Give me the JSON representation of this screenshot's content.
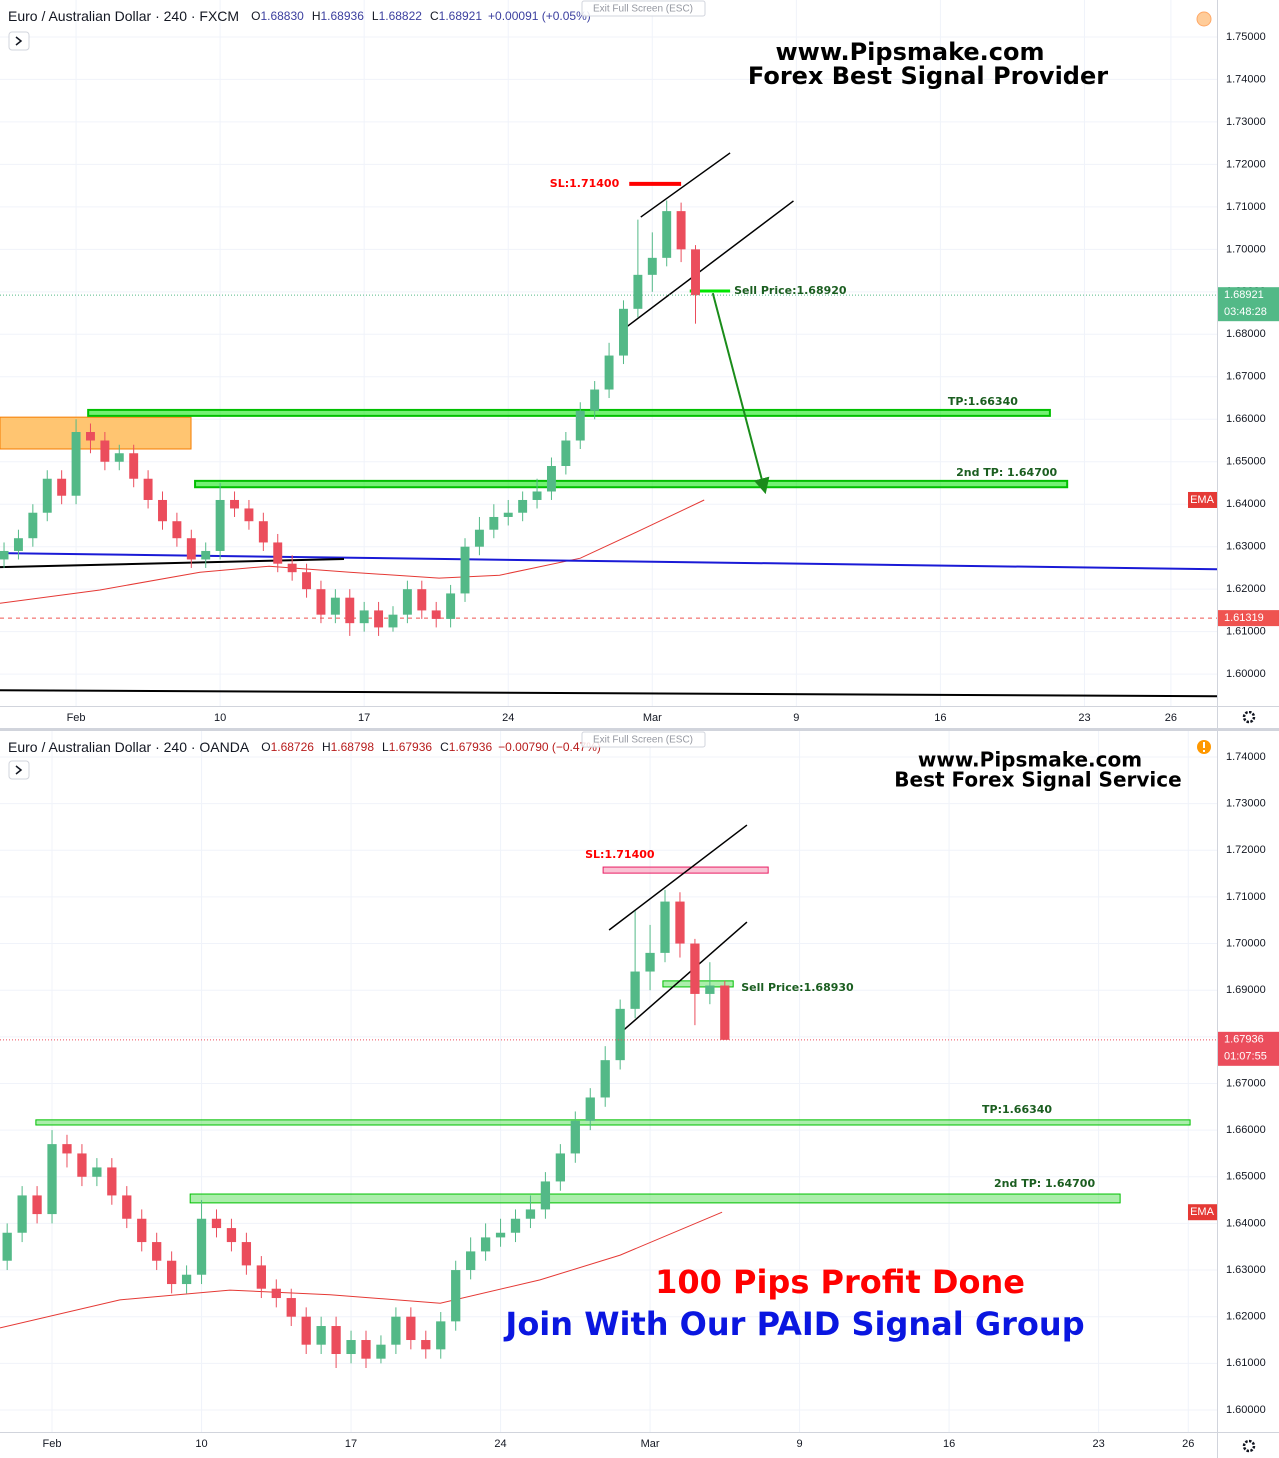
{
  "chart_data": [
    {
      "type": "candlestick",
      "title": "Euro / Australian Dollar · 240 · FXCM",
      "header_color": "#3b3f9f",
      "ohlc": [
        {
          "key": "O",
          "value": 1.6883,
          "label": "1.68830"
        },
        {
          "key": "H",
          "value": 1.68936,
          "label": "1.68936"
        },
        {
          "key": "L",
          "value": 1.68822,
          "label": "1.68822"
        },
        {
          "key": "C",
          "value": 1.68921,
          "label": "1.68921"
        }
      ],
      "change": "+0.00091 (+0.05%)",
      "exit": "Exit Full Screen (ESC)",
      "watermark": [
        "www.Pipsmake.com",
        "Forex Best Signal Provider"
      ],
      "xlim": [
        -2.64,
        39.6
      ],
      "xticks": [
        {
          "value": 0,
          "label": "Feb"
        },
        {
          "value": 5,
          "label": "10"
        },
        {
          "value": 10,
          "label": "17"
        },
        {
          "value": 15,
          "label": "24"
        },
        {
          "value": 20,
          "label": "Mar"
        },
        {
          "value": 25,
          "label": "9"
        },
        {
          "value": 30,
          "label": "16"
        },
        {
          "value": 35,
          "label": "23"
        },
        {
          "value": 38,
          "label": "26"
        }
      ],
      "ylim": [
        1.5925,
        1.7587
      ],
      "yticks": [
        {
          "value": 1.6,
          "label": "1.60000"
        },
        {
          "value": 1.61,
          "label": "1.61000"
        },
        {
          "value": 1.62,
          "label": "1.62000"
        },
        {
          "value": 1.63,
          "label": "1.63000"
        },
        {
          "value": 1.64,
          "label": "1.64000"
        },
        {
          "value": 1.65,
          "label": "1.65000"
        },
        {
          "value": 1.66,
          "label": "1.66000"
        },
        {
          "value": 1.67,
          "label": "1.67000"
        },
        {
          "value": 1.68,
          "label": "1.68000"
        },
        {
          "value": 1.69,
          "label": "1.69000"
        },
        {
          "value": 1.7,
          "label": "1.70000"
        },
        {
          "value": 1.71,
          "label": "1.71000"
        },
        {
          "value": 1.72,
          "label": "1.72000"
        },
        {
          "value": 1.73,
          "label": "1.73000"
        },
        {
          "value": 1.74,
          "label": "1.74000"
        },
        {
          "value": 1.75,
          "label": "1.75000"
        }
      ],
      "grid": true,
      "up_color": "#53b987",
      "down_color": "#eb4d5c",
      "x": [
        -2.5,
        -2,
        -1.5,
        -1,
        -0.5,
        0,
        0.5,
        1,
        1.5,
        2,
        2.5,
        3,
        3.5,
        4,
        4.5,
        5,
        5.5,
        6,
        6.5,
        7,
        7.5,
        8,
        8.5,
        9,
        9.5,
        10,
        10.5,
        11,
        11.5,
        12,
        12.5,
        13,
        13.5,
        14,
        14.5,
        15,
        15.5,
        16,
        16.5,
        17,
        17.5,
        18,
        18.5,
        19,
        19.5,
        20,
        20.5,
        21,
        21.5
      ],
      "open": [
        1.627,
        1.629,
        1.632,
        1.638,
        1.646,
        1.642,
        1.657,
        1.655,
        1.65,
        1.652,
        1.646,
        1.641,
        1.636,
        1.632,
        1.627,
        1.629,
        1.641,
        1.639,
        1.636,
        1.631,
        1.626,
        1.624,
        1.62,
        1.614,
        1.618,
        1.612,
        1.615,
        1.611,
        1.614,
        1.62,
        1.615,
        1.613,
        1.619,
        1.63,
        1.634,
        1.637,
        1.638,
        1.641,
        1.643,
        1.649,
        1.655,
        1.662,
        1.667,
        1.675,
        1.686,
        1.694,
        1.698,
        1.709,
        1.7
      ],
      "high": [
        1.631,
        1.634,
        1.64,
        1.648,
        1.648,
        1.66,
        1.659,
        1.657,
        1.654,
        1.654,
        1.648,
        1.643,
        1.638,
        1.634,
        1.631,
        1.645,
        1.643,
        1.641,
        1.638,
        1.633,
        1.628,
        1.626,
        1.622,
        1.62,
        1.62,
        1.617,
        1.617,
        1.616,
        1.622,
        1.622,
        1.617,
        1.621,
        1.632,
        1.637,
        1.64,
        1.641,
        1.643,
        1.646,
        1.651,
        1.657,
        1.664,
        1.669,
        1.678,
        1.688,
        1.707,
        1.704,
        1.7115,
        1.711,
        1.701
      ],
      "low": [
        1.625,
        1.627,
        1.63,
        1.636,
        1.64,
        1.64,
        1.652,
        1.648,
        1.648,
        1.644,
        1.639,
        1.634,
        1.63,
        1.625,
        1.625,
        1.627,
        1.637,
        1.634,
        1.629,
        1.624,
        1.622,
        1.618,
        1.612,
        1.612,
        1.609,
        1.61,
        1.609,
        1.61,
        1.612,
        1.613,
        1.611,
        1.611,
        1.617,
        1.628,
        1.632,
        1.635,
        1.636,
        1.639,
        1.641,
        1.647,
        1.653,
        1.66,
        1.665,
        1.673,
        1.684,
        1.69,
        1.696,
        1.697,
        1.6825
      ],
      "close": [
        1.629,
        1.632,
        1.638,
        1.646,
        1.642,
        1.657,
        1.655,
        1.65,
        1.652,
        1.646,
        1.641,
        1.636,
        1.632,
        1.627,
        1.629,
        1.641,
        1.639,
        1.636,
        1.631,
        1.626,
        1.624,
        1.62,
        1.614,
        1.618,
        1.612,
        1.615,
        1.611,
        1.614,
        1.62,
        1.615,
        1.613,
        1.619,
        1.63,
        1.634,
        1.637,
        1.638,
        1.641,
        1.643,
        1.649,
        1.655,
        1.662,
        1.667,
        1.675,
        1.686,
        1.694,
        1.698,
        1.709,
        1.7,
        1.68921
      ],
      "ema": {
        "name": "EMA",
        "color": "#e53935",
        "x": [
          -2.64,
          0.83,
          4.3,
          6.7,
          9.5,
          12.6,
          14.7,
          17.5,
          19.6,
          21.8
        ],
        "values": [
          1.6167,
          1.6198,
          1.624,
          1.6254,
          1.624,
          1.6226,
          1.6233,
          1.6273,
          1.6339,
          1.641
        ]
      },
      "last": {
        "value": 1.68921,
        "label": "1.68921",
        "countdown": "03:48:28",
        "color": "#53b987"
      },
      "alert": {
        "value": 1.61319,
        "label": "1.61319",
        "color": "#ef5350"
      },
      "drawings": [
        {
          "kind": "zone",
          "color": "#ffb74d",
          "x": [
            -2.64,
            3.99
          ],
          "y": [
            1.653,
            1.6605
          ]
        },
        {
          "kind": "zone",
          "color": "#00e600",
          "x": [
            0.42,
            33.8
          ],
          "y": [
            1.6608,
            1.6622
          ],
          "label": "TP:1.66340",
          "label_color": "#1b5e20"
        },
        {
          "kind": "zone",
          "color": "#00e600",
          "x": [
            4.13,
            34.4
          ],
          "y": [
            1.644,
            1.6455
          ],
          "label": "2nd TP: 1.64700",
          "label_color": "#1b5e20"
        },
        {
          "kind": "line",
          "color": "#ff0000",
          "width": 4,
          "x": [
            19.2,
            21
          ],
          "y": [
            1.7154,
            1.7154
          ],
          "label": "SL:1.71400",
          "label_color": "#ff0000"
        },
        {
          "kind": "line",
          "color": "#00e600",
          "width": 3,
          "x": [
            21.3,
            22.7
          ],
          "y": [
            1.6902,
            1.6902
          ],
          "label": "Sell Price:1.68920",
          "label_color": "#1b5e20"
        },
        {
          "kind": "line",
          "color": "#1a1ad6",
          "width": 2,
          "x": [
            -2.64,
            39.6
          ],
          "y": [
            1.6285,
            1.6247
          ]
        },
        {
          "kind": "line",
          "color": "#000000",
          "width": 2,
          "x": [
            -2.64,
            9.3
          ],
          "y": [
            1.6252,
            1.6271
          ]
        },
        {
          "kind": "line",
          "color": "#000000",
          "width": 2,
          "x": [
            -2.64,
            39.6
          ],
          "y": [
            1.5962,
            1.5948
          ]
        },
        {
          "kind": "line",
          "color": "#000000",
          "width": 1.5,
          "x": [
            19.6,
            22.7
          ],
          "y": [
            1.7076,
            1.7227
          ]
        },
        {
          "kind": "line",
          "color": "#000000",
          "width": 1.5,
          "x": [
            19.1,
            24.9
          ],
          "y": [
            1.6817,
            1.7114
          ]
        },
        {
          "kind": "arrow",
          "color": "#1a8c1a",
          "width": 2,
          "x": [
            22.1,
            23.9
          ],
          "y": [
            1.6897,
            1.6433
          ]
        }
      ]
    },
    {
      "type": "candlestick",
      "title": "Euro / Australian Dollar · 240 · OANDA",
      "header_color": "#b71c1c",
      "ohlc": [
        {
          "key": "O",
          "value": 1.68726,
          "label": "1.68726"
        },
        {
          "key": "H",
          "value": 1.68798,
          "label": "1.68798"
        },
        {
          "key": "L",
          "value": 1.67936,
          "label": "1.67936"
        },
        {
          "key": "C",
          "value": 1.67936,
          "label": "1.67936"
        }
      ],
      "change": "−0.00790 (−0.47%)",
      "exit": "Exit Full Screen (ESC)",
      "watermark": [
        "www.Pipsmake.com",
        "Best Forex Signal Service"
      ],
      "promo": [
        "100 Pips Profit Done",
        "Join With Our PAID Signal Group"
      ],
      "xlim": [
        -1.74,
        38.96
      ],
      "xticks": [
        {
          "value": 0,
          "label": "Feb"
        },
        {
          "value": 5,
          "label": "10"
        },
        {
          "value": 10,
          "label": "17"
        },
        {
          "value": 15,
          "label": "24"
        },
        {
          "value": 20,
          "label": "Mar"
        },
        {
          "value": 25,
          "label": "9"
        },
        {
          "value": 30,
          "label": "16"
        },
        {
          "value": 35,
          "label": "23"
        },
        {
          "value": 38,
          "label": "26"
        }
      ],
      "ylim": [
        1.59528,
        1.74557
      ],
      "yticks": [
        {
          "value": 1.6,
          "label": "1.60000"
        },
        {
          "value": 1.61,
          "label": "1.61000"
        },
        {
          "value": 1.62,
          "label": "1.62000"
        },
        {
          "value": 1.63,
          "label": "1.63000"
        },
        {
          "value": 1.64,
          "label": "1.64000"
        },
        {
          "value": 1.65,
          "label": "1.65000"
        },
        {
          "value": 1.66,
          "label": "1.66000"
        },
        {
          "value": 1.67,
          "label": "1.67000"
        },
        {
          "value": 1.68,
          "label": "1.68000"
        },
        {
          "value": 1.69,
          "label": "1.69000"
        },
        {
          "value": 1.7,
          "label": "1.70000"
        },
        {
          "value": 1.71,
          "label": "1.71000"
        },
        {
          "value": 1.72,
          "label": "1.72000"
        },
        {
          "value": 1.73,
          "label": "1.73000"
        },
        {
          "value": 1.74,
          "label": "1.74000"
        }
      ],
      "grid": true,
      "up_color": "#53b987",
      "down_color": "#eb4d5c",
      "x": [
        -1.5,
        -1,
        -0.5,
        0,
        0.5,
        1,
        1.5,
        2,
        2.5,
        3,
        3.5,
        4,
        4.5,
        5,
        5.5,
        6,
        6.5,
        7,
        7.5,
        8,
        8.5,
        9,
        9.5,
        10,
        10.5,
        11,
        11.5,
        12,
        12.5,
        13,
        13.5,
        14,
        14.5,
        15,
        15.5,
        16,
        16.5,
        17,
        17.5,
        18,
        18.5,
        19,
        19.5,
        20,
        20.5,
        21,
        21.5,
        22,
        22.5
      ],
      "open": [
        1.632,
        1.638,
        1.646,
        1.642,
        1.657,
        1.655,
        1.65,
        1.652,
        1.646,
        1.641,
        1.636,
        1.632,
        1.627,
        1.629,
        1.641,
        1.639,
        1.636,
        1.631,
        1.626,
        1.624,
        1.62,
        1.614,
        1.618,
        1.612,
        1.615,
        1.611,
        1.614,
        1.62,
        1.615,
        1.613,
        1.619,
        1.63,
        1.634,
        1.637,
        1.638,
        1.641,
        1.643,
        1.649,
        1.655,
        1.662,
        1.667,
        1.675,
        1.686,
        1.694,
        1.698,
        1.709,
        1.7,
        1.6892,
        1.691
      ],
      "high": [
        1.64,
        1.648,
        1.648,
        1.66,
        1.659,
        1.657,
        1.654,
        1.654,
        1.648,
        1.643,
        1.638,
        1.634,
        1.631,
        1.645,
        1.643,
        1.641,
        1.638,
        1.633,
        1.628,
        1.626,
        1.622,
        1.62,
        1.62,
        1.617,
        1.617,
        1.616,
        1.622,
        1.622,
        1.617,
        1.621,
        1.632,
        1.637,
        1.64,
        1.641,
        1.643,
        1.646,
        1.651,
        1.657,
        1.664,
        1.669,
        1.678,
        1.688,
        1.707,
        1.704,
        1.7115,
        1.711,
        1.701,
        1.696,
        1.692
      ],
      "low": [
        1.63,
        1.636,
        1.64,
        1.64,
        1.652,
        1.648,
        1.648,
        1.644,
        1.639,
        1.634,
        1.63,
        1.625,
        1.625,
        1.627,
        1.637,
        1.634,
        1.629,
        1.624,
        1.622,
        1.618,
        1.612,
        1.612,
        1.609,
        1.61,
        1.609,
        1.61,
        1.612,
        1.613,
        1.611,
        1.611,
        1.617,
        1.628,
        1.632,
        1.635,
        1.636,
        1.639,
        1.641,
        1.647,
        1.653,
        1.66,
        1.665,
        1.673,
        1.684,
        1.69,
        1.696,
        1.697,
        1.6825,
        1.687,
        1.67936
      ],
      "close": [
        1.638,
        1.646,
        1.642,
        1.657,
        1.655,
        1.65,
        1.652,
        1.646,
        1.641,
        1.636,
        1.632,
        1.627,
        1.629,
        1.641,
        1.639,
        1.636,
        1.631,
        1.626,
        1.624,
        1.62,
        1.614,
        1.618,
        1.612,
        1.615,
        1.611,
        1.614,
        1.62,
        1.615,
        1.613,
        1.619,
        1.63,
        1.634,
        1.637,
        1.638,
        1.641,
        1.643,
        1.649,
        1.655,
        1.662,
        1.667,
        1.675,
        1.686,
        1.694,
        1.698,
        1.709,
        1.7,
        1.6892,
        1.691,
        1.67936
      ],
      "ema": {
        "name": "EMA",
        "color": "#e53935",
        "x": [
          -1.74,
          2.27,
          5.95,
          9.3,
          12.98,
          16.32,
          19,
          22.41
        ],
        "values": [
          1.6176,
          1.6236,
          1.6257,
          1.6247,
          1.6229,
          1.6279,
          1.6332,
          1.6424
        ]
      },
      "last": {
        "value": 1.67936,
        "label": "1.67936",
        "countdown": "01:07:55",
        "color": "#eb4d5c"
      },
      "drawings": [
        {
          "kind": "zone",
          "color": "#66e066",
          "x": [
            -0.54,
            38.06
          ],
          "y": [
            1.6611,
            1.6622
          ],
          "label": "TP:1.66340",
          "label_color": "#1b5e20"
        },
        {
          "kind": "zone",
          "color": "#66e066",
          "x": [
            4.62,
            35.72
          ],
          "y": [
            1.6444,
            1.6463
          ],
          "label": "2nd TP: 1.64700",
          "label_color": "#1b5e20"
        },
        {
          "kind": "zone",
          "color": "#f48fb1",
          "x": [
            18.43,
            23.95
          ],
          "y": [
            1.7151,
            1.7164
          ],
          "label": "SL:1.71400",
          "label_color": "#ff0000"
        },
        {
          "kind": "zone",
          "color": "#66e066",
          "x": [
            20.43,
            22.78
          ],
          "y": [
            1.6907,
            1.692
          ],
          "label": "Sell Price:1.68930",
          "label_color": "#1b5e20"
        },
        {
          "kind": "line",
          "color": "#000000",
          "width": 1.5,
          "x": [
            18.63,
            23.24
          ],
          "y": [
            1.7029,
            1.7254
          ]
        },
        {
          "kind": "line",
          "color": "#000000",
          "width": 1.5,
          "x": [
            19,
            23.24
          ],
          "y": [
            1.6808,
            1.7046
          ]
        }
      ]
    }
  ]
}
